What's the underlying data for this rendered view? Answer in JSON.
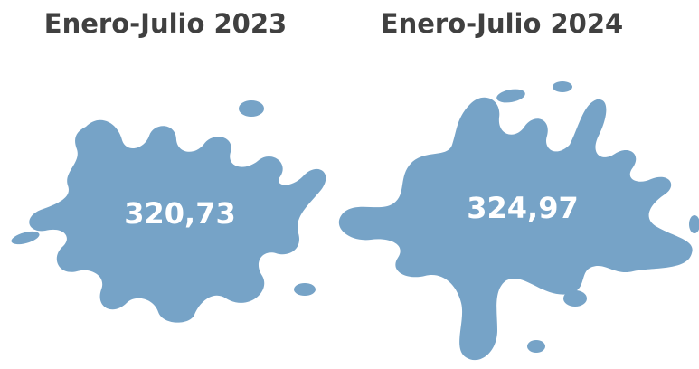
{
  "panels": [
    {
      "title": "Enero-Julio 2023",
      "value": "320,73"
    },
    {
      "title": "Enero-Julio 2024",
      "value": "324,97"
    }
  ]
}
